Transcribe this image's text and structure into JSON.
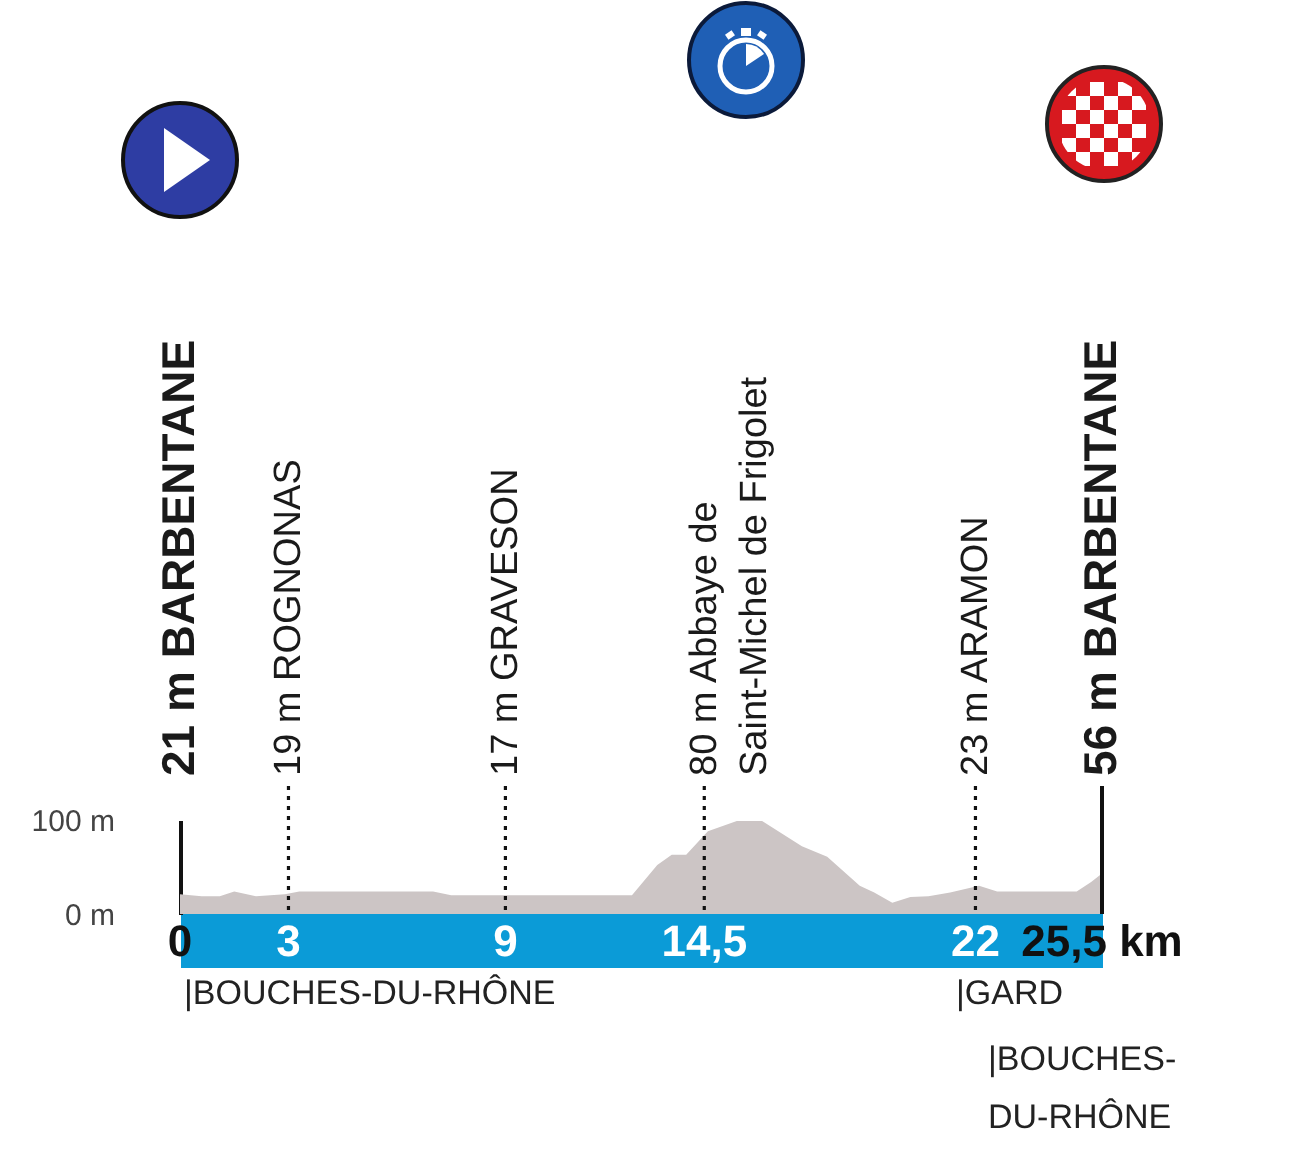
{
  "chart_data": {
    "type": "area",
    "color": "#ccc5c5",
    "x": [
      0,
      0.6,
      1.1,
      1.5,
      2.1,
      2.9,
      3.3,
      7.0,
      7.5,
      12.5,
      13.2,
      13.6,
      14.0,
      14.6,
      15.4,
      16.1,
      17.2,
      17.9,
      18.8,
      19.2,
      19.7,
      20.2,
      20.7,
      21.3,
      22.1,
      22.6,
      24.8,
      25.2,
      25.5
    ],
    "values": [
      21,
      19,
      19,
      24,
      19,
      21,
      24,
      24,
      20,
      20,
      52,
      63,
      63,
      88,
      99,
      99,
      72,
      61,
      30,
      23,
      12,
      18,
      19,
      23,
      30,
      24,
      24,
      34,
      43
    ],
    "xlim": [
      0,
      25.5
    ],
    "xticks": [
      0,
      3,
      9,
      {
        "value": 14.5,
        "label": "14,5"
      },
      22,
      {
        "value": 25.5,
        "label": "25,5 km"
      }
    ],
    "ylim": [
      0,
      100
    ],
    "yticks": [
      {
        "value": 0,
        "label": "0 m"
      },
      {
        "value": 100,
        "label": "100 m"
      }
    ],
    "ref_lines": [
      {
        "axis": "x",
        "value": 3,
        "label": "19 m ROGNONAS",
        "line_style": "dotted"
      },
      {
        "axis": "x",
        "value": 9,
        "label": "17 m GRAVESON",
        "line_style": "dotted"
      },
      {
        "axis": "x",
        "value": 14.5,
        "label": "80 m Abbaye de\nSaint-Michel de Frigolet",
        "line_style": "dotted"
      },
      {
        "axis": "x",
        "value": 22,
        "label": "23 m ARAMON",
        "line_style": "dotted"
      },
      {
        "axis": "x",
        "value": 25.5,
        "label": "56 m BARBENTANE",
        "line_style": "solid"
      }
    ],
    "annotations": [
      "21 m BARBENTANE",
      "|BOUCHES-DU-RHÔNE",
      "|GARD",
      "|BOUCHES-\nDU-RHÔNE"
    ]
  }
}
